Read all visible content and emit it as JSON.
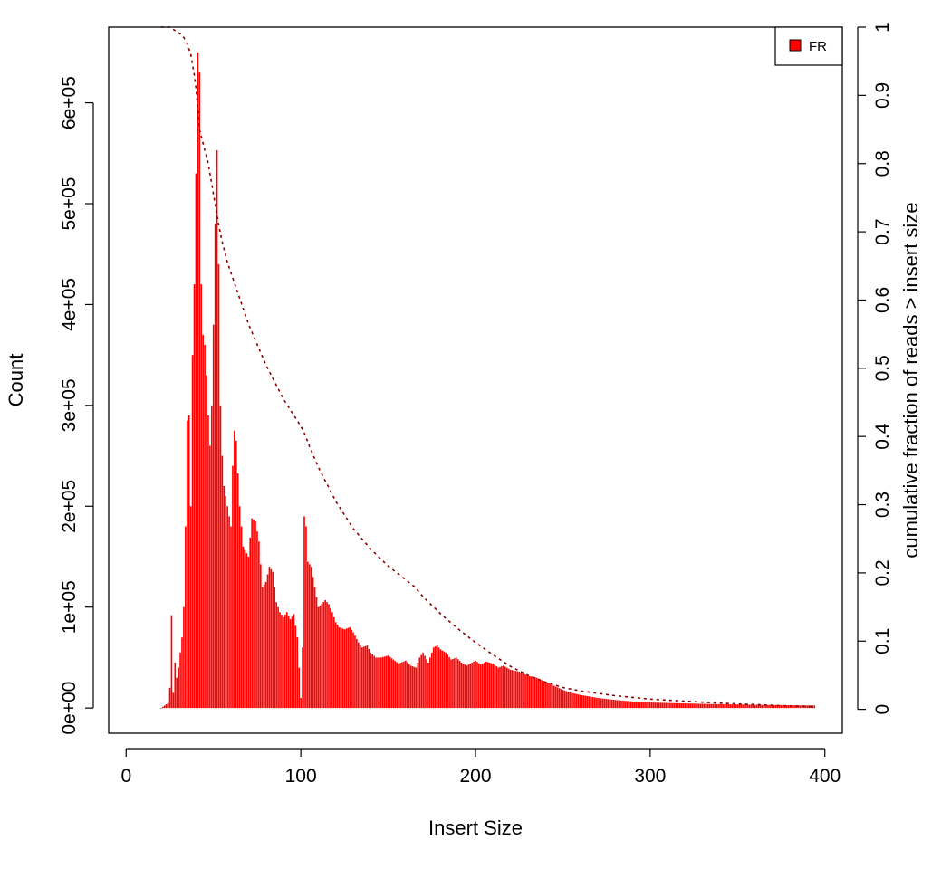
{
  "chart_data": {
    "type": "bar",
    "xlabel": "Insert Size",
    "ylabel": "Count",
    "y2label": "cumulative fraction of reads > insert size",
    "xlim": [
      -10,
      410
    ],
    "ylim": [
      -25000,
      675000
    ],
    "y2lim": [
      -0.035,
      1.0
    ],
    "x_ticks": [
      0,
      100,
      200,
      300,
      400
    ],
    "x_tick_labels": [
      "0",
      "100",
      "200",
      "300",
      "400"
    ],
    "y_ticks": [
      0,
      100000,
      200000,
      300000,
      400000,
      500000,
      600000
    ],
    "y_tick_labels": [
      "0e+00",
      "1e+05",
      "2e+05",
      "3e+05",
      "4e+05",
      "5e+05",
      "6e+05"
    ],
    "y2_ticks": [
      0,
      0.1,
      0.2,
      0.3,
      0.4,
      0.5,
      0.6,
      0.7,
      0.8,
      0.9,
      1
    ],
    "y2_tick_labels": [
      "0",
      "0.1",
      "0.2",
      "0.3",
      "0.4",
      "0.5",
      "0.6",
      "0.7",
      "0.8",
      "0.9",
      "1"
    ],
    "legend": {
      "position": "top-right",
      "entries": [
        {
          "label": "FR",
          "color": "#ff0000"
        }
      ]
    },
    "grid": false,
    "colors": {
      "bars": "#ff0000",
      "cumulative": "#8b0000"
    },
    "series": [
      {
        "type": "bar",
        "name": "FR",
        "anchors": [
          [
            20,
            0
          ],
          [
            24,
            5000
          ],
          [
            25,
            20000
          ],
          [
            26,
            92000
          ],
          [
            27,
            15000
          ],
          [
            28,
            45000
          ],
          [
            29,
            30000
          ],
          [
            30,
            40000
          ],
          [
            31,
            55000
          ],
          [
            32,
            70000
          ],
          [
            33,
            100000
          ],
          [
            34,
            180000
          ],
          [
            35,
            285000
          ],
          [
            36,
            290000
          ],
          [
            37,
            200000
          ],
          [
            38,
            350000
          ],
          [
            39,
            420000
          ],
          [
            40,
            530000
          ],
          [
            41,
            650000
          ],
          [
            42,
            630000
          ],
          [
            43,
            420000
          ],
          [
            44,
            370000
          ],
          [
            45,
            360000
          ],
          [
            46,
            330000
          ],
          [
            47,
            290000
          ],
          [
            48,
            260000
          ],
          [
            49,
            300000
          ],
          [
            50,
            380000
          ],
          [
            51,
            480000
          ],
          [
            52,
            553000
          ],
          [
            53,
            440000
          ],
          [
            54,
            300000
          ],
          [
            55,
            250000
          ],
          [
            56,
            220000
          ],
          [
            58,
            200000
          ],
          [
            60,
            180000
          ],
          [
            61,
            240000
          ],
          [
            62,
            275000
          ],
          [
            63,
            265000
          ],
          [
            65,
            200000
          ],
          [
            67,
            160000
          ],
          [
            70,
            150000
          ],
          [
            72,
            188000
          ],
          [
            74,
            185000
          ],
          [
            76,
            165000
          ],
          [
            78,
            120000
          ],
          [
            80,
            125000
          ],
          [
            82,
            140000
          ],
          [
            84,
            135000
          ],
          [
            86,
            105000
          ],
          [
            88,
            95000
          ],
          [
            90,
            90000
          ],
          [
            92,
            95000
          ],
          [
            94,
            88000
          ],
          [
            96,
            93000
          ],
          [
            98,
            70000
          ],
          [
            100,
            10000
          ],
          [
            101,
            60000
          ],
          [
            102,
            190000
          ],
          [
            103,
            180000
          ],
          [
            104,
            145000
          ],
          [
            106,
            140000
          ],
          [
            108,
            120000
          ],
          [
            110,
            100000
          ],
          [
            112,
            103000
          ],
          [
            114,
            107000
          ],
          [
            116,
            103000
          ],
          [
            118,
            95000
          ],
          [
            120,
            85000
          ],
          [
            122,
            80000
          ],
          [
            125,
            78000
          ],
          [
            128,
            80000
          ],
          [
            130,
            75000
          ],
          [
            133,
            65000
          ],
          [
            135,
            60000
          ],
          [
            138,
            62000
          ],
          [
            140,
            55000
          ],
          [
            143,
            50000
          ],
          [
            146,
            50000
          ],
          [
            150,
            52000
          ],
          [
            153,
            48000
          ],
          [
            156,
            44000
          ],
          [
            160,
            47000
          ],
          [
            163,
            42000
          ],
          [
            166,
            40000
          ],
          [
            168,
            50000
          ],
          [
            170,
            55000
          ],
          [
            173,
            45000
          ],
          [
            176,
            60000
          ],
          [
            178,
            62000
          ],
          [
            180,
            58000
          ],
          [
            183,
            55000
          ],
          [
            186,
            48000
          ],
          [
            189,
            50000
          ],
          [
            192,
            45000
          ],
          [
            195,
            42000
          ],
          [
            198,
            45000
          ],
          [
            200,
            47000
          ],
          [
            203,
            43000
          ],
          [
            206,
            46000
          ],
          [
            210,
            44000
          ],
          [
            213,
            40000
          ],
          [
            216,
            42000
          ],
          [
            220,
            38000
          ],
          [
            225,
            36000
          ],
          [
            230,
            32000
          ],
          [
            235,
            30000
          ],
          [
            240,
            26000
          ],
          [
            245,
            22000
          ],
          [
            250,
            18000
          ],
          [
            255,
            15000
          ],
          [
            260,
            13000
          ],
          [
            270,
            10000
          ],
          [
            280,
            8000
          ],
          [
            290,
            6500
          ],
          [
            300,
            5500
          ],
          [
            320,
            4500
          ],
          [
            340,
            3800
          ],
          [
            360,
            3200
          ],
          [
            380,
            2800
          ],
          [
            394,
            2500
          ]
        ]
      },
      {
        "type": "line",
        "name": "cumulative",
        "linestyle": "dashed",
        "points": [
          [
            20,
            1.0
          ],
          [
            25,
            1.0
          ],
          [
            28,
            0.995
          ],
          [
            31,
            0.99
          ],
          [
            33,
            0.985
          ],
          [
            35,
            0.975
          ],
          [
            37,
            0.96
          ],
          [
            39,
            0.93
          ],
          [
            40,
            0.91
          ],
          [
            41,
            0.88
          ],
          [
            42,
            0.85
          ],
          [
            43,
            0.84
          ],
          [
            45,
            0.82
          ],
          [
            47,
            0.8
          ],
          [
            49,
            0.77
          ],
          [
            51,
            0.74
          ],
          [
            53,
            0.71
          ],
          [
            55,
            0.685
          ],
          [
            58,
            0.655
          ],
          [
            62,
            0.625
          ],
          [
            66,
            0.595
          ],
          [
            70,
            0.565
          ],
          [
            75,
            0.535
          ],
          [
            80,
            0.505
          ],
          [
            85,
            0.48
          ],
          [
            90,
            0.455
          ],
          [
            95,
            0.435
          ],
          [
            100,
            0.415
          ],
          [
            102,
            0.405
          ],
          [
            105,
            0.385
          ],
          [
            110,
            0.355
          ],
          [
            115,
            0.33
          ],
          [
            120,
            0.305
          ],
          [
            125,
            0.285
          ],
          [
            130,
            0.265
          ],
          [
            140,
            0.235
          ],
          [
            150,
            0.21
          ],
          [
            160,
            0.19
          ],
          [
            165,
            0.18
          ],
          [
            170,
            0.165
          ],
          [
            180,
            0.14
          ],
          [
            190,
            0.118
          ],
          [
            200,
            0.098
          ],
          [
            210,
            0.08
          ],
          [
            220,
            0.063
          ],
          [
            230,
            0.05
          ],
          [
            240,
            0.04
          ],
          [
            250,
            0.032
          ],
          [
            260,
            0.027
          ],
          [
            280,
            0.02
          ],
          [
            300,
            0.015
          ],
          [
            320,
            0.012
          ],
          [
            340,
            0.009
          ],
          [
            360,
            0.007
          ],
          [
            380,
            0.005
          ],
          [
            394,
            0.004
          ]
        ]
      }
    ]
  }
}
